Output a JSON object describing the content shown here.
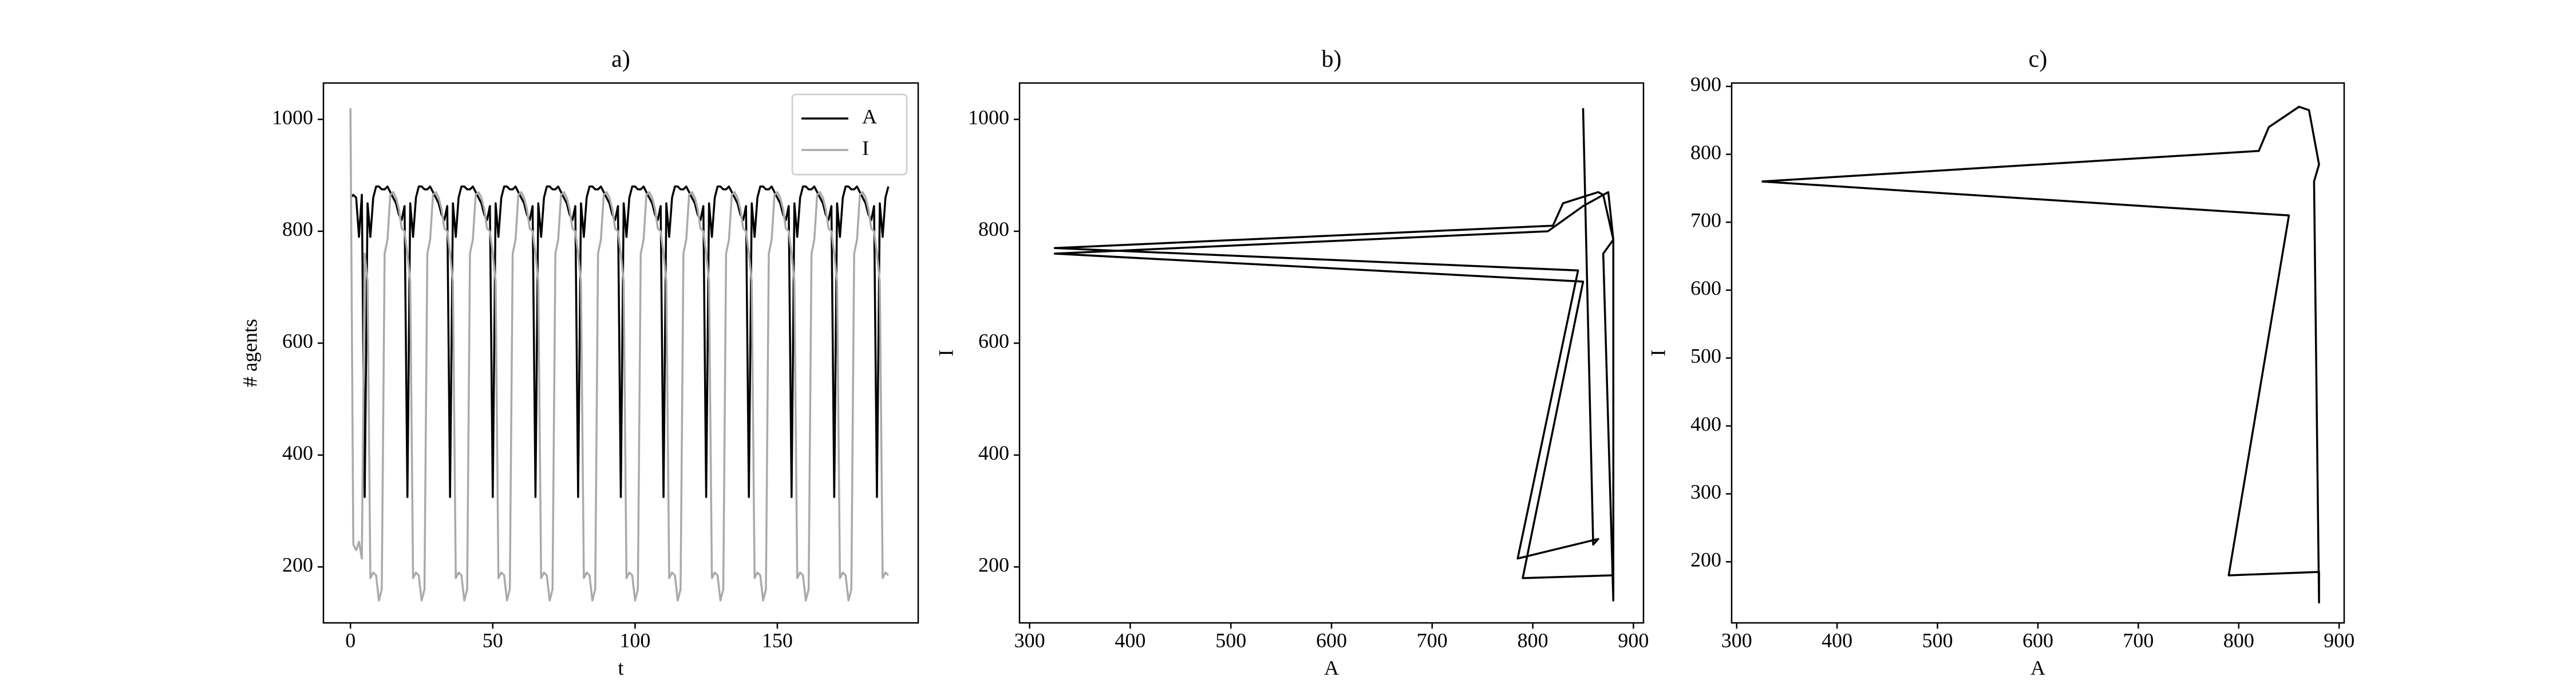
{
  "chart_data": [
    {
      "type": "line",
      "title": "a)",
      "xlabel": "t",
      "ylabel": "# agents",
      "legend": "upper right",
      "xlim": [
        -9.5,
        199.5
      ],
      "xticks": [
        0,
        50,
        100,
        150
      ],
      "ylim": [
        100,
        1065
      ],
      "yticks": [
        200,
        400,
        600,
        800,
        1000
      ],
      "x": [
        0,
        1,
        2,
        3,
        4,
        5,
        6,
        7,
        8,
        9,
        10,
        11,
        12,
        13,
        14,
        15,
        16,
        17,
        18,
        19,
        20,
        21,
        22,
        23,
        24,
        25,
        26,
        27,
        28,
        29,
        30,
        31,
        32,
        33,
        34,
        35,
        36,
        37,
        38,
        39,
        40,
        41,
        42,
        43,
        44,
        45,
        46,
        47,
        48,
        49,
        50,
        51,
        52,
        53,
        54,
        55,
        56,
        57,
        58,
        59,
        60,
        61,
        62,
        63,
        64,
        65,
        66,
        67,
        68,
        69,
        70,
        71,
        72,
        73,
        74,
        75,
        76,
        77,
        78,
        79,
        80,
        81,
        82,
        83,
        84,
        85,
        86,
        87,
        88,
        89,
        90,
        91,
        92,
        93,
        94,
        95,
        96,
        97,
        98,
        99,
        100,
        101,
        102,
        103,
        104,
        105,
        106,
        107,
        108,
        109,
        110,
        111,
        112,
        113,
        114,
        115,
        116,
        117,
        118,
        119,
        120,
        121,
        122,
        123,
        124,
        125,
        126,
        127,
        128,
        129,
        130,
        131,
        132,
        133,
        134,
        135,
        136,
        137,
        138,
        139,
        140,
        141,
        142,
        143,
        144,
        145,
        146,
        147,
        148,
        149,
        150,
        151,
        152,
        153,
        154,
        155,
        156,
        157,
        158,
        159,
        160,
        161,
        162,
        163,
        164,
        165,
        166,
        167,
        168,
        169,
        170,
        171,
        172,
        173,
        174,
        175,
        176,
        177,
        178,
        179,
        180,
        181,
        182,
        183,
        184,
        185,
        186,
        187,
        188,
        189
      ],
      "series": [
        {
          "name": "A",
          "color": "#000000",
          "values": [
            860,
            865,
            860,
            790,
            865,
            325,
            850,
            790,
            860,
            880,
            880,
            875,
            875,
            880,
            870,
            860,
            850,
            830,
            820,
            845,
            325,
            850,
            790,
            860,
            880,
            880,
            875,
            875,
            880,
            870,
            860,
            850,
            830,
            820,
            845,
            325,
            850,
            790,
            860,
            880,
            880,
            875,
            875,
            880,
            870,
            860,
            850,
            830,
            820,
            845,
            325,
            850,
            790,
            860,
            880,
            880,
            875,
            875,
            880,
            870,
            860,
            850,
            830,
            820,
            845,
            325,
            850,
            790,
            860,
            880,
            880,
            875,
            875,
            880,
            870,
            860,
            850,
            830,
            820,
            845,
            325,
            850,
            790,
            860,
            880,
            880,
            875,
            875,
            880,
            870,
            860,
            850,
            830,
            820,
            845,
            325,
            850,
            790,
            860,
            880,
            880,
            875,
            875,
            880,
            870,
            860,
            850,
            830,
            820,
            845,
            325,
            850,
            790,
            860,
            880,
            880,
            875,
            875,
            880,
            870,
            860,
            850,
            830,
            820,
            845,
            325,
            850,
            790,
            860,
            880,
            880,
            875,
            875,
            880,
            870,
            860,
            850,
            830,
            820,
            845,
            325,
            850,
            790,
            860,
            880,
            880,
            875,
            875,
            880,
            870,
            860,
            850,
            830,
            820,
            845,
            325,
            850,
            790,
            860,
            880,
            880,
            875,
            875,
            880,
            870,
            860,
            850,
            830,
            820,
            845,
            325,
            850,
            790,
            860,
            880,
            880,
            875,
            875,
            880,
            870,
            860,
            850,
            830,
            820,
            845,
            325,
            850,
            790,
            860,
            880
          ]
        },
        {
          "name": "I",
          "color": "#aaaaaa",
          "values": [
            1020,
            240,
            230,
            245,
            215,
            760,
            710,
            180,
            190,
            185,
            140,
            160,
            760,
            785,
            865,
            870,
            860,
            840,
            805,
            800,
            760,
            710,
            180,
            190,
            185,
            140,
            160,
            760,
            785,
            865,
            870,
            860,
            840,
            805,
            800,
            760,
            710,
            180,
            190,
            185,
            140,
            160,
            760,
            785,
            865,
            870,
            860,
            840,
            805,
            800,
            760,
            710,
            180,
            190,
            185,
            140,
            160,
            760,
            785,
            865,
            870,
            860,
            840,
            805,
            800,
            760,
            710,
            180,
            190,
            185,
            140,
            160,
            760,
            785,
            865,
            870,
            860,
            840,
            805,
            800,
            760,
            710,
            180,
            190,
            185,
            140,
            160,
            760,
            785,
            865,
            870,
            860,
            840,
            805,
            800,
            760,
            710,
            180,
            190,
            185,
            140,
            160,
            760,
            785,
            865,
            870,
            860,
            840,
            805,
            800,
            760,
            710,
            180,
            190,
            185,
            140,
            160,
            760,
            785,
            865,
            870,
            860,
            840,
            805,
            800,
            760,
            710,
            180,
            190,
            185,
            140,
            160,
            760,
            785,
            865,
            870,
            860,
            840,
            805,
            800,
            760,
            710,
            180,
            190,
            185,
            140,
            160,
            760,
            785,
            865,
            870,
            860,
            840,
            805,
            800,
            760,
            710,
            180,
            190,
            185,
            140,
            160,
            760,
            785,
            865,
            870,
            860,
            840,
            805,
            800,
            760,
            710,
            180,
            190,
            185,
            140,
            160,
            760,
            785,
            865,
            870,
            860,
            840,
            805,
            800,
            760,
            710,
            180,
            190,
            185
          ]
        }
      ]
    },
    {
      "type": "line",
      "title": "b)",
      "xlabel": "A",
      "ylabel": "I",
      "color": "#000000",
      "xlim": [
        290,
        910
      ],
      "xticks": [
        300,
        400,
        500,
        600,
        700,
        800,
        900
      ],
      "ylim": [
        100,
        1065
      ],
      "yticks": [
        200,
        400,
        600,
        800,
        1000
      ],
      "x": [
        850,
        860,
        865,
        785,
        845,
        325,
        820,
        830,
        865,
        870,
        880,
        870,
        880,
        880,
        790,
        850,
        325,
        815,
        850,
        870,
        875,
        880,
        880,
        790,
        850,
        325
      ],
      "values": [
        1020,
        240,
        250,
        215,
        730,
        770,
        810,
        850,
        870,
        865,
        785,
        760,
        140,
        185,
        180,
        710,
        760,
        800,
        845,
        865,
        870,
        785,
        185,
        180,
        710,
        760
      ]
    },
    {
      "type": "line",
      "title": "c)",
      "xlabel": "A",
      "ylabel": "I",
      "color": "#000000",
      "xlim": [
        295,
        905
      ],
      "xticks": [
        300,
        400,
        500,
        600,
        700,
        800,
        900
      ],
      "ylim": [
        110,
        905
      ],
      "yticks": [
        200,
        300,
        400,
        500,
        600,
        700,
        800,
        900
      ],
      "x": [
        325,
        850,
        790,
        880,
        880,
        875,
        880,
        870,
        860,
        830,
        820,
        325
      ],
      "values": [
        760,
        710,
        180,
        185,
        140,
        760,
        785,
        865,
        870,
        840,
        805,
        760
      ]
    }
  ]
}
